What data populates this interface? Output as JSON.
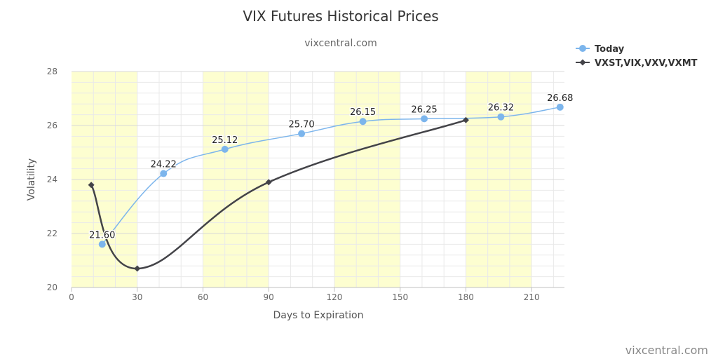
{
  "chart_data": {
    "type": "line",
    "title": "VIX Futures Historical Prices",
    "subtitle": "vixcentral.com",
    "xlabel": "Days to Expiration",
    "ylabel": "Volatility",
    "xlim": [
      0,
      225
    ],
    "ylim": [
      20,
      28
    ],
    "x_ticks": [
      0,
      30,
      60,
      90,
      120,
      150,
      180,
      210
    ],
    "y_ticks": [
      20,
      22,
      24,
      26,
      28
    ],
    "grid": true,
    "shaded_bands": [
      [
        0,
        30
      ],
      [
        60,
        90
      ],
      [
        120,
        150
      ],
      [
        180,
        210
      ]
    ],
    "band_color": "#fdfed0",
    "legend_position": "top-right",
    "series": [
      {
        "name": "Today",
        "color": "#7cb5ec",
        "marker": "circle",
        "x": [
          14,
          42,
          70,
          105,
          133,
          161,
          196,
          223
        ],
        "y": [
          21.6,
          24.22,
          25.12,
          25.7,
          26.15,
          26.25,
          26.32,
          26.68
        ],
        "labels": [
          "21.60",
          "24.22",
          "25.12",
          "25.70",
          "26.15",
          "26.25",
          "26.32",
          "26.68"
        ]
      },
      {
        "name": "VXST,VIX,VXV,VXMT",
        "color": "#434348",
        "marker": "diamond",
        "x": [
          9,
          30,
          90,
          180
        ],
        "y": [
          23.8,
          20.7,
          23.9,
          26.2
        ]
      }
    ]
  },
  "credit": "vixcentral.com"
}
